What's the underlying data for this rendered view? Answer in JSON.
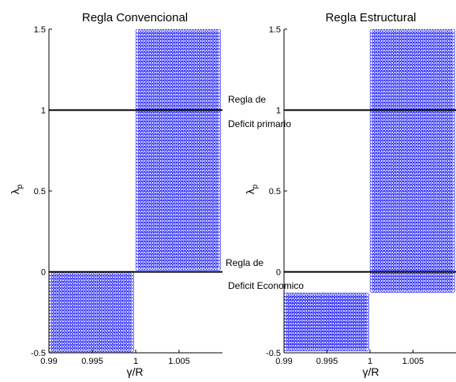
{
  "chart_data": [
    {
      "type": "scatter",
      "title": "Regla Convencional",
      "xlabel": "γ/R",
      "ylabel": "λp",
      "xlim": [
        0.99,
        1.01
      ],
      "ylim": [
        -0.5,
        1.5
      ],
      "xticks": [
        "0.99",
        "0.995",
        "1",
        "1.005"
      ],
      "xtick_values": [
        0.99,
        0.995,
        1.0,
        1.005
      ],
      "yticks": [
        "-0.5",
        "0",
        "0.5",
        "1",
        "1.5"
      ],
      "ytick_values": [
        -0.5,
        0,
        0.5,
        1,
        1.5
      ],
      "series": [
        {
          "marker": "circle",
          "color": "#0000ff",
          "regions": [
            {
              "x": [
                1.0,
                1.01
              ],
              "y": [
                0.0,
                1.5
              ]
            },
            {
              "x": [
                0.99,
                1.0
              ],
              "y": [
                -0.5,
                0.0
              ]
            }
          ]
        }
      ],
      "hlines": [
        {
          "y": 1.0,
          "color": "#000000"
        },
        {
          "y": 0.0,
          "color": "#000000"
        }
      ]
    },
    {
      "type": "scatter",
      "title": "Regla Estructural",
      "xlabel": "γ/R",
      "ylabel": "λp",
      "xlim": [
        0.99,
        1.01
      ],
      "ylim": [
        -0.5,
        1.5
      ],
      "xticks": [
        "0.99",
        "0.995",
        "1",
        "1.005"
      ],
      "xtick_values": [
        0.99,
        0.995,
        1.0,
        1.005
      ],
      "yticks": [
        "-0.5",
        "0",
        "0.5",
        "1",
        "1.5"
      ],
      "ytick_values": [
        -0.5,
        0,
        0.5,
        1,
        1.5
      ],
      "series": [
        {
          "marker": "circle",
          "color": "#0000ff",
          "regions": [
            {
              "x": [
                1.0,
                1.01
              ],
              "y": [
                -0.13,
                1.5
              ]
            },
            {
              "x": [
                0.99,
                1.0
              ],
              "y": [
                -0.5,
                -0.13
              ]
            }
          ]
        }
      ],
      "hlines": [
        {
          "y": 1.0,
          "color": "#000000"
        },
        {
          "y": 0.0,
          "color": "#000000"
        }
      ]
    }
  ],
  "annotations": {
    "top_line1": "Regla de",
    "top_line2": "Deficit primario",
    "bottom_line1": "Regla de",
    "bottom_line2": "Deficit Economico"
  }
}
